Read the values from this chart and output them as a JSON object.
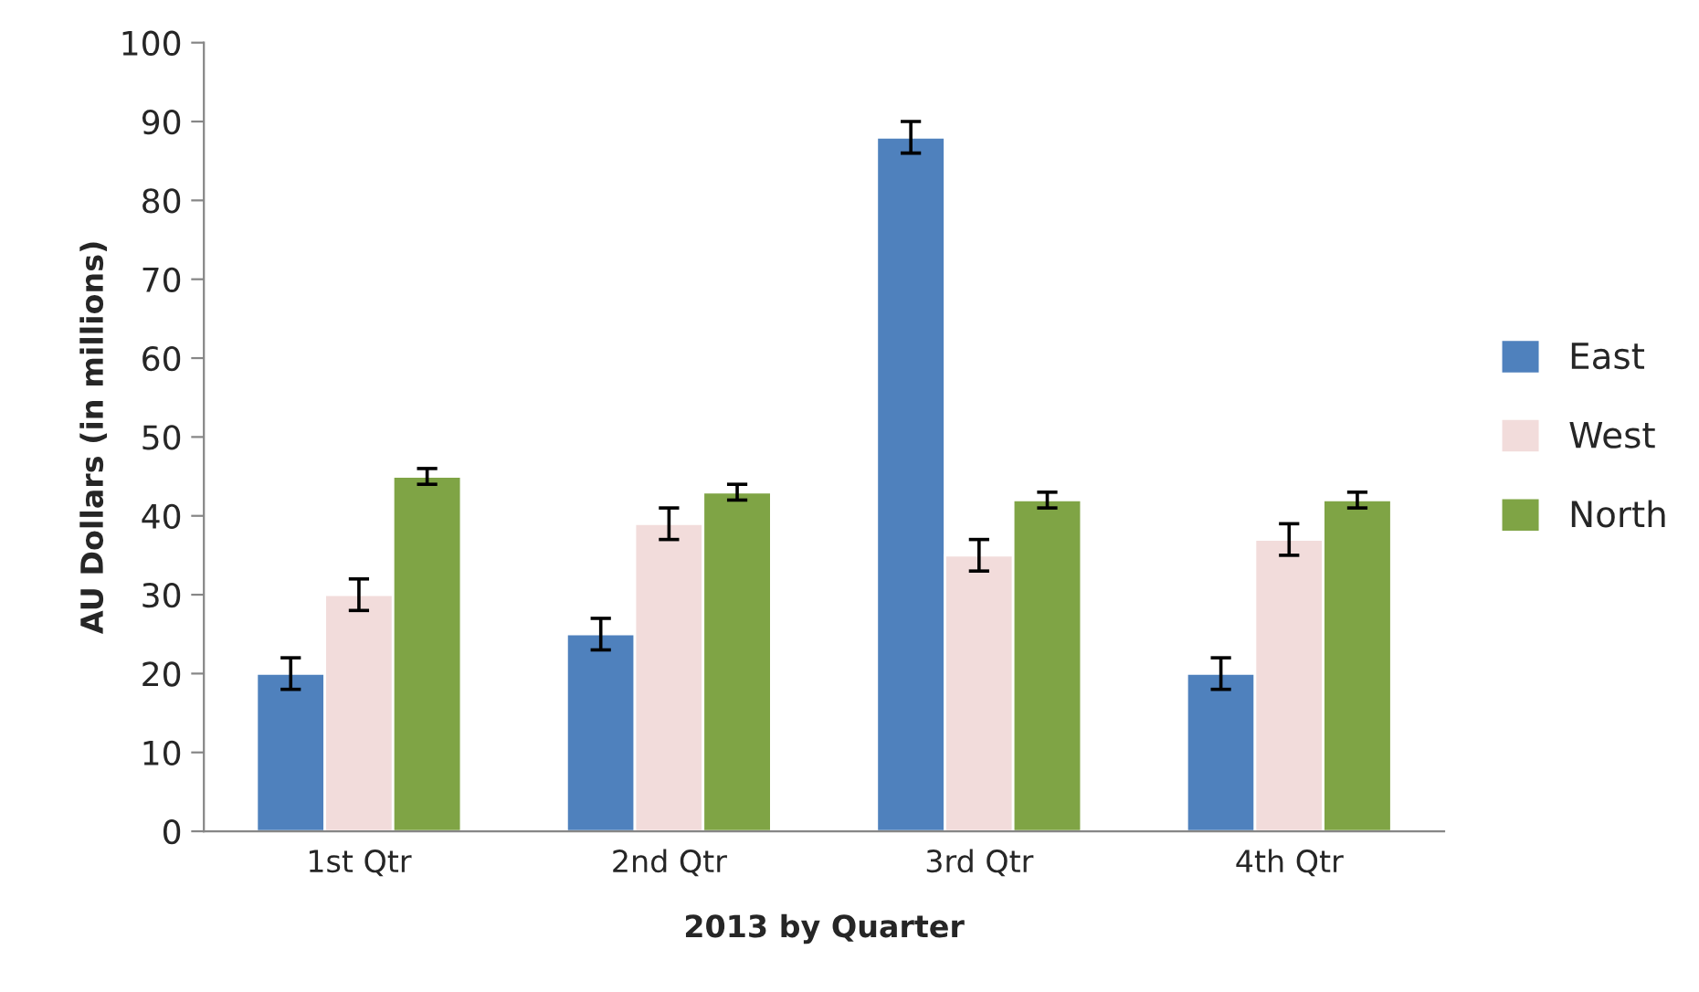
{
  "chart_data": {
    "type": "bar",
    "xlabel": "2013 by Quarter",
    "ylabel": "AU Dollars (in millions)",
    "categories": [
      "1st Qtr",
      "2nd Qtr",
      "3rd Qtr",
      "4th Qtr"
    ],
    "series": [
      {
        "name": "East",
        "color": "#4f81bd",
        "values": [
          20,
          25,
          88,
          20
        ],
        "errors": [
          2,
          2,
          2,
          2
        ]
      },
      {
        "name": "West",
        "color": "#f2dcdb",
        "values": [
          30,
          39,
          35,
          37
        ],
        "errors": [
          2,
          2,
          2,
          2
        ]
      },
      {
        "name": "North",
        "color": "#7fa445",
        "values": [
          45,
          43,
          42,
          42
        ],
        "errors": [
          1,
          1,
          1,
          1
        ]
      }
    ],
    "ylim": [
      0,
      100
    ],
    "yticks": [
      0,
      10,
      20,
      30,
      40,
      50,
      60,
      70,
      80,
      90,
      100
    ],
    "grid": false,
    "legend": "right"
  }
}
